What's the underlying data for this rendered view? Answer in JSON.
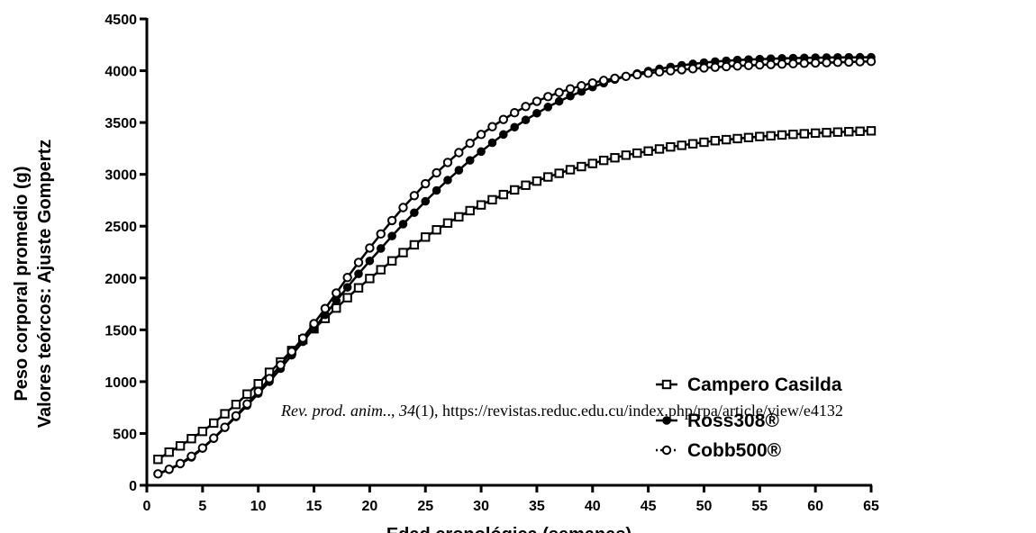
{
  "chart_data": {
    "type": "line",
    "title": "",
    "xlabel": "Edad cronológica (semanas)",
    "ylabel": [
      "Peso corporal promedio (g)",
      "Valores teórcos: Ajuste Gompertz"
    ],
    "xlim": [
      0,
      65
    ],
    "ylim": [
      0,
      4500
    ],
    "xticks": [
      "0",
      "5",
      "10",
      "15",
      "20",
      "25",
      "30",
      "35",
      "40",
      "45",
      "50",
      "55",
      "60",
      "65"
    ],
    "yticks": [
      "0",
      "500",
      "1000",
      "1500",
      "2000",
      "2500",
      "3000",
      "3500",
      "4000",
      "4500"
    ],
    "grid": false,
    "legend_position": "bottom-right",
    "x": [
      1,
      2,
      3,
      4,
      5,
      6,
      7,
      8,
      9,
      10,
      11,
      12,
      13,
      14,
      15,
      16,
      17,
      18,
      19,
      20,
      21,
      22,
      23,
      24,
      25,
      26,
      27,
      28,
      29,
      30,
      31,
      32,
      33,
      34,
      35,
      36,
      37,
      38,
      39,
      40,
      41,
      42,
      43,
      44,
      45,
      46,
      47,
      48,
      49,
      50,
      51,
      52,
      53,
      54,
      55,
      56,
      57,
      58,
      59,
      60,
      61,
      62,
      63,
      64,
      65
    ],
    "series": [
      {
        "name": "Campero Casilda",
        "marker": "open-square",
        "values": [
          250,
          320,
          380,
          450,
          520,
          600,
          690,
          780,
          880,
          980,
          1090,
          1190,
          1300,
          1405,
          1510,
          1610,
          1710,
          1810,
          1905,
          1995,
          2080,
          2165,
          2245,
          2320,
          2395,
          2465,
          2530,
          2590,
          2650,
          2705,
          2755,
          2805,
          2850,
          2895,
          2935,
          2975,
          3010,
          3045,
          3075,
          3105,
          3135,
          3160,
          3185,
          3205,
          3225,
          3245,
          3265,
          3280,
          3295,
          3310,
          3325,
          3335,
          3345,
          3355,
          3365,
          3372,
          3380,
          3386,
          3392,
          3398,
          3403,
          3408,
          3412,
          3416,
          3420
        ]
      },
      {
        "name": "Ross308®",
        "marker": "filled-circle",
        "values": [
          110,
          150,
          205,
          270,
          355,
          450,
          555,
          660,
          770,
          885,
          1000,
          1125,
          1255,
          1385,
          1515,
          1645,
          1780,
          1910,
          2040,
          2165,
          2285,
          2405,
          2520,
          2630,
          2740,
          2845,
          2945,
          3040,
          3135,
          3220,
          3305,
          3385,
          3455,
          3525,
          3590,
          3650,
          3705,
          3755,
          3800,
          3842,
          3880,
          3915,
          3946,
          3973,
          3997,
          4018,
          4036,
          4052,
          4066,
          4078,
          4088,
          4096,
          4103,
          4108,
          4112,
          4116,
          4119,
          4122,
          4124,
          4126,
          4127,
          4128,
          4129,
          4130,
          4130
        ]
      },
      {
        "name": "Cobb500®",
        "marker": "open-circle",
        "values": [
          110,
          155,
          210,
          280,
          360,
          455,
          560,
          670,
          785,
          905,
          1030,
          1160,
          1290,
          1420,
          1560,
          1705,
          1855,
          2005,
          2150,
          2290,
          2425,
          2555,
          2680,
          2795,
          2910,
          3015,
          3115,
          3210,
          3300,
          3385,
          3460,
          3530,
          3595,
          3655,
          3705,
          3750,
          3790,
          3825,
          3855,
          3882,
          3906,
          3927,
          3946,
          3962,
          3976,
          3989,
          4000,
          4010,
          4019,
          4027,
          4034,
          4040,
          4046,
          4051,
          4056,
          4060,
          4064,
          4068,
          4072,
          4075,
          4078,
          4081,
          4084,
          4087,
          4090
        ]
      }
    ],
    "annotation": "Rev. prod. anim., 34(1), https://revistas.reduc.edu.cu/index.php/rpa/article/view/e4132"
  },
  "colors": {
    "axis": "#000000",
    "line": "#000000",
    "background": "#ffffff"
  },
  "watermark": {
    "journal": "Rev. prod. anim.",
    "volume": "34",
    "issue": "(1), https://revistas.reduc.edu.cu/index.php/rpa/article/view/e4132"
  }
}
